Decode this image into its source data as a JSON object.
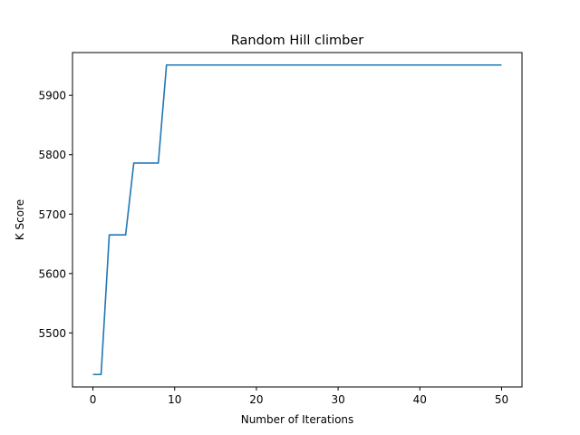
{
  "chart_data": {
    "type": "line",
    "title": "Random Hill climber",
    "xlabel": "Number of Iterations",
    "ylabel": "K Score",
    "xlim": [
      -2.5,
      52.5
    ],
    "ylim": [
      5409,
      5972
    ],
    "xticks": [
      0,
      10,
      20,
      30,
      40,
      50
    ],
    "yticks": [
      5500,
      5600,
      5700,
      5800,
      5900
    ],
    "grid": false,
    "colors": {
      "line": "#1f77b4",
      "axes": "#000000"
    },
    "series": [
      {
        "x": [
          0,
          1,
          2,
          3,
          4,
          5,
          6,
          7,
          8,
          9,
          10,
          11,
          12,
          13,
          14,
          15,
          16,
          17,
          18,
          19,
          20,
          21,
          22,
          23,
          24,
          25,
          26,
          27,
          28,
          29,
          30,
          31,
          32,
          33,
          34,
          35,
          36,
          37,
          38,
          39,
          40,
          41,
          42,
          43,
          44,
          45,
          46,
          47,
          48,
          49,
          50
        ],
        "y": [
          5430,
          5430,
          5665,
          5665,
          5665,
          5786,
          5786,
          5786,
          5786,
          5951,
          5951,
          5951,
          5951,
          5951,
          5951,
          5951,
          5951,
          5951,
          5951,
          5951,
          5951,
          5951,
          5951,
          5951,
          5951,
          5951,
          5951,
          5951,
          5951,
          5951,
          5951,
          5951,
          5951,
          5951,
          5951,
          5951,
          5951,
          5951,
          5951,
          5951,
          5951,
          5951,
          5951,
          5951,
          5951,
          5951,
          5951,
          5951,
          5951,
          5951,
          5951
        ]
      }
    ]
  }
}
